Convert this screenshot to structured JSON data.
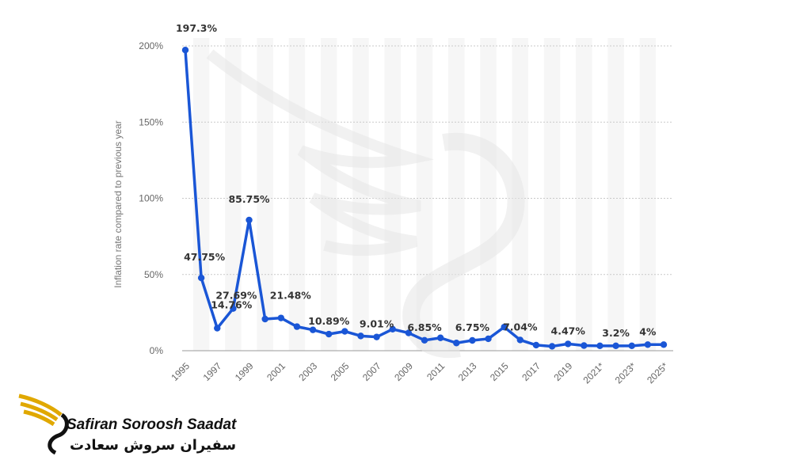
{
  "chart_data": {
    "type": "line",
    "ylabel": "Inflation rate compared to previous year",
    "ylim": [
      0,
      200
    ],
    "y_ticks": [
      "0%",
      "50%",
      "100%",
      "150%",
      "200%"
    ],
    "x_tick_labels": [
      "1995",
      "1997",
      "1999",
      "2001",
      "2003",
      "2005",
      "2007",
      "2009",
      "2011",
      "2013",
      "2015",
      "2017",
      "2019",
      "2021*",
      "2023*",
      "2025*"
    ],
    "grid": true,
    "series_color": "#1a56d6",
    "series": [
      {
        "name": "",
        "x": [
          "1995",
          "1996",
          "1997",
          "1998",
          "1999",
          "2000",
          "2001",
          "2002",
          "2003",
          "2004",
          "2005",
          "2006",
          "2007",
          "2008",
          "2009",
          "2010",
          "2011",
          "2012",
          "2013",
          "2014",
          "2015",
          "2016",
          "2017",
          "2018",
          "2019",
          "2020",
          "2021*",
          "2022*",
          "2023*",
          "2024*",
          "2025*"
        ],
        "values": [
          197.3,
          47.75,
          14.76,
          27.69,
          85.75,
          20.78,
          21.48,
          15.79,
          13.68,
          10.89,
          12.68,
          9.68,
          9.01,
          14.11,
          11.65,
          6.85,
          8.44,
          5.07,
          6.75,
          7.82,
          15.53,
          7.04,
          3.68,
          2.88,
          4.47,
          3.38,
          3.2,
          3.2,
          3.2,
          4.0,
          4.0
        ],
        "data_labels": [
          {
            "x": "1995",
            "text": "197.3%"
          },
          {
            "x": "1996",
            "text": "47.75%"
          },
          {
            "x": "1997",
            "text": "14.76%"
          },
          {
            "x": "1998",
            "text": "27.69%"
          },
          {
            "x": "1999",
            "text": "85.75%"
          },
          {
            "x": "2001",
            "text": "21.48%"
          },
          {
            "x": "2004",
            "text": "10.89%"
          },
          {
            "x": "2007",
            "text": "9.01%"
          },
          {
            "x": "2010",
            "text": "6.85%"
          },
          {
            "x": "2013",
            "text": "6.75%"
          },
          {
            "x": "2016",
            "text": "7.04%"
          },
          {
            "x": "2019",
            "text": "4.47%"
          },
          {
            "x": "2022*",
            "text": "3.2%"
          },
          {
            "x": "2024*",
            "text": "4%"
          }
        ]
      }
    ]
  },
  "logo": {
    "name_en": "Safiran Soroosh Saadat",
    "name_fa": "سفیران سروش سعادت",
    "gold": "#e0a800"
  }
}
